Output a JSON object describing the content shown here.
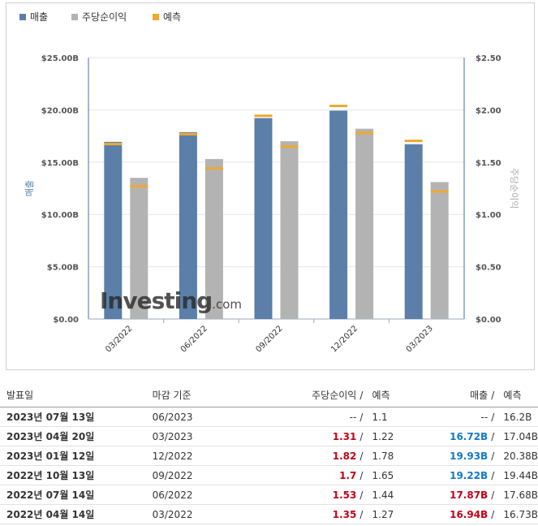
{
  "legend": [
    {
      "label": "매출",
      "color": "#5b7fa8"
    },
    {
      "label": "주당순이익",
      "color": "#b3b3b3"
    },
    {
      "label": "예측",
      "color": "#f0a830"
    }
  ],
  "watermark": {
    "brand": "Investing",
    "suffix": ".com"
  },
  "chart_data": {
    "type": "bar",
    "categories": [
      "03/2022",
      "06/2022",
      "09/2022",
      "12/2022",
      "03/2023"
    ],
    "series": [
      {
        "name": "매출",
        "axis": "left",
        "values": [
          16.94,
          17.87,
          19.22,
          19.93,
          16.72
        ],
        "forecast": [
          16.73,
          17.68,
          19.44,
          20.38,
          17.04
        ],
        "color": "#5b7fa8"
      },
      {
        "name": "주당순이익",
        "axis": "right",
        "values": [
          1.35,
          1.53,
          1.7,
          1.82,
          1.31
        ],
        "forecast": [
          1.27,
          1.44,
          1.65,
          1.78,
          1.22
        ],
        "color": "#b3b3b3"
      }
    ],
    "forecast_color": "#f0a830",
    "ylabel_left": "매출",
    "ylabel_right": "주당순이익",
    "ylim_left": [
      0,
      25
    ],
    "ylim_right": [
      0,
      2.5
    ],
    "yticks_left": [
      "$0.00",
      "$5.00B",
      "$10.00B",
      "$15.00B",
      "$20.00B",
      "$25.00B"
    ],
    "yticks_right": [
      "$0.00",
      "$0.50",
      "$1.00",
      "$1.50",
      "$2.00",
      "$2.50"
    ]
  },
  "table": {
    "headers": {
      "date": "발표일",
      "period": "마감 기준",
      "eps": "주당순이익",
      "sep": "/",
      "eps_forecast": "예측",
      "revenue": "매출",
      "revenue_forecast": "예측"
    },
    "rows": [
      {
        "date": "2023년 07월 13일",
        "period": "06/2023",
        "eps": "--",
        "eps_cls": "neutral",
        "eps_forecast": "1.1",
        "revenue": "--",
        "rev_cls": "neutral",
        "revenue_forecast": "16.2B"
      },
      {
        "date": "2023년 04월 20일",
        "period": "03/2023",
        "eps": "1.31",
        "eps_cls": "up",
        "eps_forecast": "1.22",
        "revenue": "16.72B",
        "rev_cls": "down",
        "revenue_forecast": "17.04B"
      },
      {
        "date": "2023년 01월 12일",
        "period": "12/2022",
        "eps": "1.82",
        "eps_cls": "up",
        "eps_forecast": "1.78",
        "revenue": "19.93B",
        "rev_cls": "down",
        "revenue_forecast": "20.38B"
      },
      {
        "date": "2022년 10월 13일",
        "period": "09/2022",
        "eps": "1.7",
        "eps_cls": "up",
        "eps_forecast": "1.65",
        "revenue": "19.22B",
        "rev_cls": "down",
        "revenue_forecast": "19.44B"
      },
      {
        "date": "2022년 07월 14일",
        "period": "06/2022",
        "eps": "1.53",
        "eps_cls": "up",
        "eps_forecast": "1.44",
        "revenue": "17.87B",
        "rev_cls": "up",
        "revenue_forecast": "17.68B"
      },
      {
        "date": "2022년 04월 14일",
        "period": "03/2022",
        "eps": "1.35",
        "eps_cls": "up",
        "eps_forecast": "1.27",
        "revenue": "16.94B",
        "rev_cls": "up",
        "revenue_forecast": "16.73B"
      }
    ]
  }
}
